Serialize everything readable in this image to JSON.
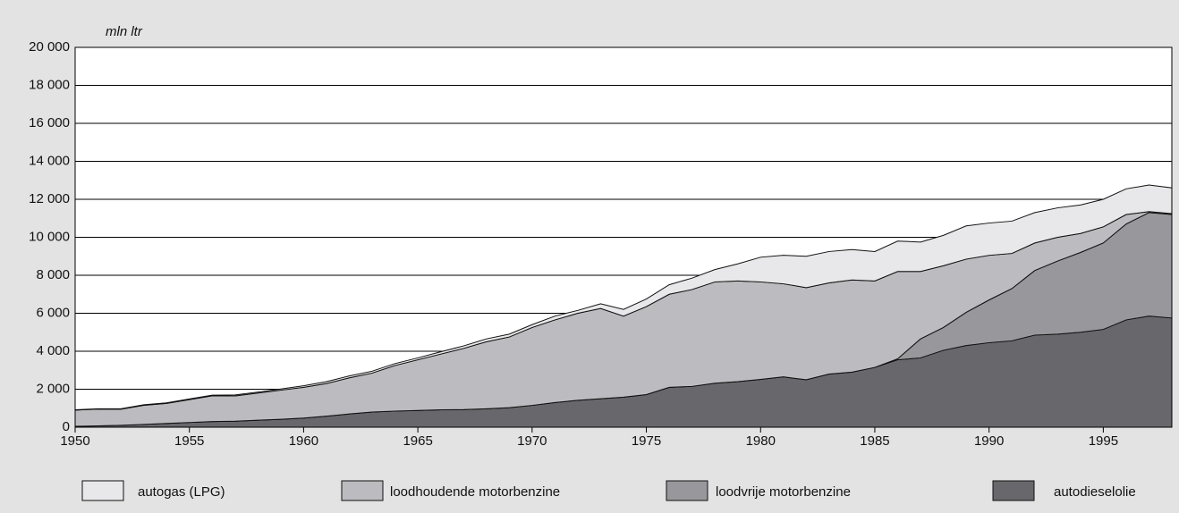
{
  "chart_data": {
    "type": "stacked_area",
    "y_axis_label": "mln ltr",
    "x": [
      1950,
      1951,
      1952,
      1953,
      1954,
      1955,
      1956,
      1957,
      1958,
      1959,
      1960,
      1961,
      1962,
      1963,
      1964,
      1965,
      1966,
      1967,
      1968,
      1969,
      1970,
      1971,
      1972,
      1973,
      1974,
      1975,
      1976,
      1977,
      1978,
      1979,
      1980,
      1981,
      1982,
      1983,
      1984,
      1985,
      1986,
      1987,
      1988,
      1989,
      1990,
      1991,
      1992,
      1993,
      1994,
      1995,
      1996,
      1997,
      1998
    ],
    "series": [
      {
        "name": "autogas (LPG)",
        "color": "#e8e8ea",
        "values": [
          20,
          20,
          20,
          30,
          30,
          40,
          40,
          50,
          50,
          60,
          80,
          100,
          100,
          100,
          100,
          100,
          120,
          130,
          150,
          150,
          150,
          200,
          150,
          250,
          350,
          400,
          500,
          600,
          650,
          900,
          1300,
          1500,
          1650,
          1650,
          1600,
          1550,
          1600,
          1550,
          1600,
          1750,
          1700,
          1700,
          1600,
          1550,
          1500,
          1450,
          1350,
          1400,
          1350
        ]
      },
      {
        "name": "loodhoudende motorbenzine",
        "color": "#bcbcc0",
        "values": [
          850,
          880,
          850,
          1000,
          1050,
          1200,
          1350,
          1330,
          1430,
          1530,
          1620,
          1720,
          1900,
          2050,
          2400,
          2670,
          2930,
          3220,
          3530,
          3720,
          4100,
          4350,
          4580,
          4750,
          4270,
          4630,
          4900,
          5100,
          5330,
          5300,
          5130,
          4900,
          4850,
          4800,
          4850,
          4550,
          4600,
          3550,
          3250,
          2800,
          2350,
          1850,
          1450,
          1250,
          1000,
          850,
          500,
          50,
          50
        ]
      },
      {
        "name": "loodvrije motorbenzine",
        "color": "#98989c",
        "values": [
          0,
          0,
          0,
          0,
          0,
          0,
          0,
          0,
          0,
          0,
          0,
          0,
          0,
          0,
          0,
          0,
          0,
          0,
          0,
          0,
          0,
          0,
          0,
          0,
          0,
          0,
          0,
          0,
          0,
          0,
          0,
          0,
          0,
          0,
          0,
          0,
          50,
          1000,
          1200,
          1750,
          2250,
          2750,
          3400,
          3850,
          4200,
          4550,
          5050,
          5450,
          5450
        ]
      },
      {
        "name": "autodieselolie",
        "color": "#68686c",
        "values": [
          50,
          70,
          100,
          150,
          200,
          250,
          300,
          320,
          370,
          420,
          480,
          580,
          700,
          800,
          850,
          880,
          920,
          930,
          970,
          1030,
          1150,
          1300,
          1420,
          1500,
          1580,
          1720,
          2100,
          2150,
          2320,
          2400,
          2520,
          2650,
          2500,
          2800,
          2900,
          3150,
          3550,
          3650,
          4050,
          4300,
          4450,
          4550,
          4850,
          4900,
          5000,
          5150,
          5650,
          5850,
          5750
        ]
      }
    ],
    "xlim": [
      1950,
      1998
    ],
    "xticks": [
      1950,
      1955,
      1960,
      1965,
      1970,
      1975,
      1980,
      1985,
      1990,
      1995
    ],
    "ylim": [
      0,
      20000
    ],
    "yticks": [
      0,
      {
        "value": 2000,
        "label": "2 000"
      },
      {
        "value": 4000,
        "label": "4 000"
      },
      {
        "value": 6000,
        "label": "6 000"
      },
      {
        "value": 8000,
        "label": "8 000"
      },
      {
        "value": 10000,
        "label": "10 000"
      },
      {
        "value": 12000,
        "label": "12 000"
      },
      {
        "value": 14000,
        "label": "14 000"
      },
      {
        "value": 16000,
        "label": "16 000"
      },
      {
        "value": 18000,
        "label": "18 000"
      },
      {
        "value": 20000,
        "label": "20 000"
      }
    ],
    "grid": true,
    "legend": "bottom"
  }
}
